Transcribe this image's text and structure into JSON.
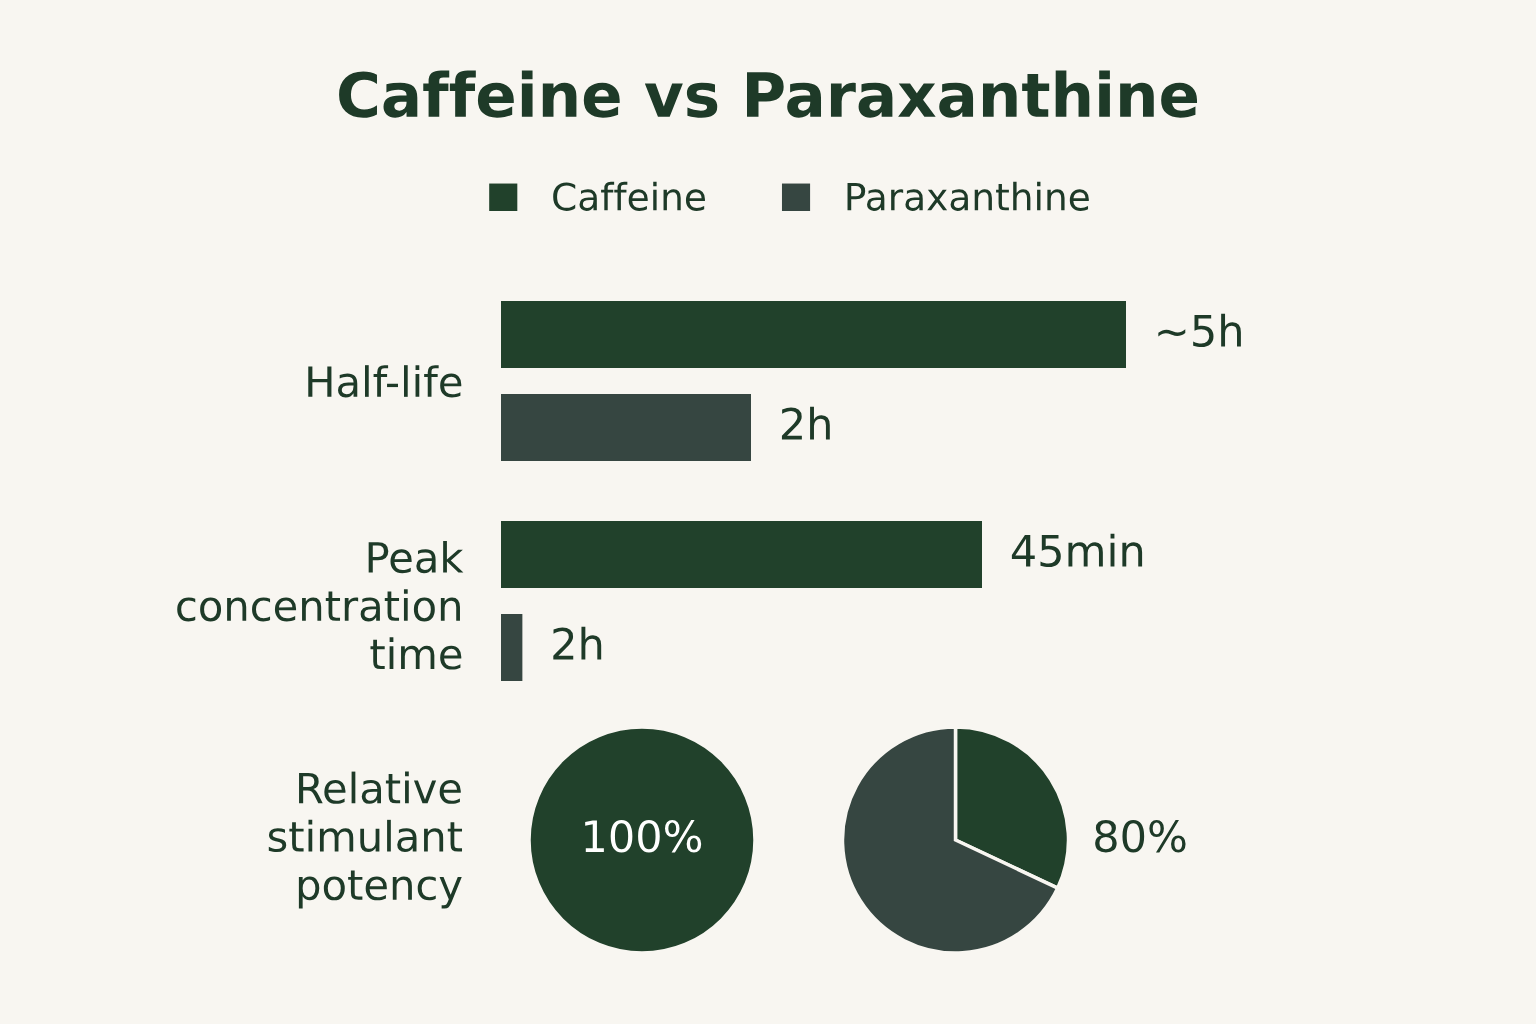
{
  "chart_data": [
    {
      "type": "bar",
      "title": "Caffeine vs Paraxanthine",
      "orientation": "horizontal",
      "tick_labels": "y",
      "legend": "top",
      "categories": [
        "Half-life"
      ],
      "series": [
        {
          "name": "Caffeine",
          "color": "#21412b",
          "values": [
            5
          ],
          "value_labels": [
            "~5h"
          ]
        },
        {
          "name": "Paraxanthine",
          "color": "#364641",
          "values": [
            2
          ],
          "value_labels": [
            "2h"
          ]
        }
      ]
    },
    {
      "type": "bar",
      "orientation": "horizontal",
      "tick_labels": "y",
      "categories": [
        "Peak\nconcentration\ntime"
      ],
      "series": [
        {
          "color": "#21412b",
          "values": [
            45
          ],
          "value_labels": [
            "45min"
          ]
        },
        {
          "color": "#364641",
          "values": [
            2
          ],
          "value_labels": [
            "2h"
          ]
        }
      ]
    },
    {
      "type": "pie",
      "ylabel": "Relative\nstimulant\npotency",
      "categories": [
        null
      ],
      "values": [
        100
      ],
      "colors": [
        "#21412b"
      ],
      "value_labels": [
        "100%"
      ]
    },
    {
      "type": "pie",
      "categories": [
        null,
        null
      ],
      "values": [
        32,
        68
      ],
      "colors": [
        "#21412b",
        "#364641"
      ],
      "annotations": [
        "80%"
      ]
    }
  ]
}
